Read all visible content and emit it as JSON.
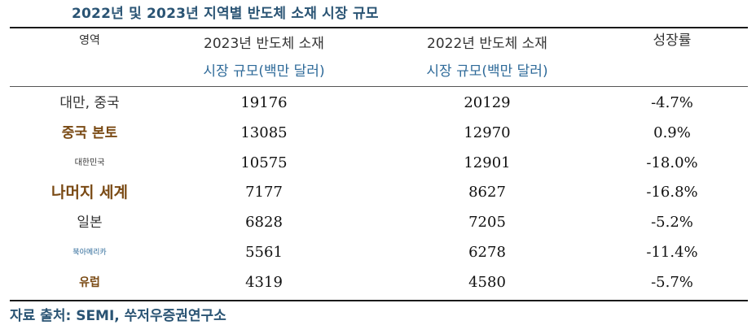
{
  "title": "2022년 및 2023년 지역별 반도체 소재 시장 규모",
  "header": {
    "region": "영역",
    "col2023_line1": "2023년 반도체 소재",
    "col2023_line2": "시장 규모(백만 달러)",
    "col2022_line1": "2022년 반도체 소재",
    "col2022_line2": "시장 규모(백만 달러)",
    "growth": "성장률"
  },
  "rows": [
    {
      "region": "대만, 중국",
      "v2023": "19176",
      "v2022": "20129",
      "growth": "-4.7%"
    },
    {
      "region": "중국 본토",
      "v2023": "13085",
      "v2022": "12970",
      "growth": "0.9%"
    },
    {
      "region": "대한민국",
      "v2023": "10575",
      "v2022": "12901",
      "growth": "-18.0%"
    },
    {
      "region": "나머지 세계",
      "v2023": "7177",
      "v2022": "8627",
      "growth": "-16.8%"
    },
    {
      "region": "일본",
      "v2023": "6828",
      "v2022": "7205",
      "growth": "-5.2%"
    },
    {
      "region": "북아메리카",
      "v2023": "5561",
      "v2022": "6278",
      "growth": "-11.4%"
    },
    {
      "region": "유럽",
      "v2023": "4319",
      "v2022": "4580",
      "growth": "-5.7%"
    }
  ],
  "source": "자료 출처: SEMI, 쑤저우증권연구소"
}
